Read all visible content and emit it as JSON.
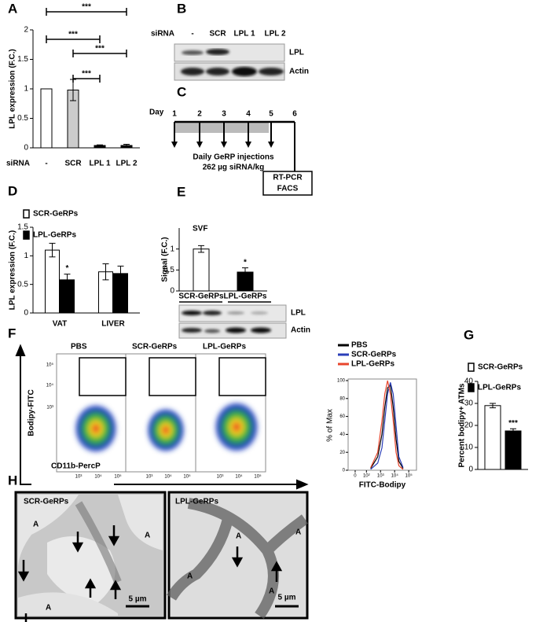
{
  "chart_data": [
    {
      "type": "bar",
      "panel": "A",
      "y_label": "LPL expression (F.C.)",
      "x_label": "siRNA",
      "categories": [
        "-",
        "SCR",
        "LPL 1",
        "LPL 2"
      ],
      "values": [
        1,
        0.98,
        0.04,
        0.04
      ],
      "errors": [
        0,
        0.18,
        0.01,
        0.02
      ],
      "colors": [
        "#ffffff",
        "#cccccc",
        "#000000",
        "#000000"
      ],
      "ylim": [
        0,
        2
      ],
      "yticks": [
        0,
        0.5,
        1,
        1.5,
        2
      ],
      "brackets": [
        {
          "text": "***",
          "between": [
            "-",
            "LPL 2"
          ]
        },
        {
          "text": "***",
          "between": [
            "-",
            "LPL 1"
          ]
        },
        {
          "text": "***",
          "between": [
            "SCR",
            "LPL 2"
          ]
        },
        {
          "text": "***",
          "between": [
            "SCR",
            "LPL 1"
          ]
        }
      ]
    },
    {
      "type": "bar",
      "panel": "D",
      "y_label": "LPL expression (F.C.)",
      "categories": [
        "VAT",
        "LIVER"
      ],
      "series": [
        {
          "name": "SCR-GeRPs",
          "color": "#ffffff",
          "values": [
            1.1,
            0.72
          ],
          "errors": [
            0.12,
            0.14
          ],
          "markers": [
            null,
            null
          ]
        },
        {
          "name": "LPL-GeRPs",
          "color": "#000000",
          "values": [
            0.58,
            0.69
          ],
          "errors": [
            0.1,
            0.13
          ],
          "markers": [
            "*",
            null
          ]
        }
      ],
      "ylim": [
        0,
        1.5
      ],
      "yticks": [
        0,
        0.5,
        1,
        1.5
      ]
    },
    {
      "type": "bar",
      "panel": "E",
      "title": "SVF",
      "y_label": "Signal (F.C.)",
      "categories": [
        "SCR-GeRPs",
        "LPL-GeRPs"
      ],
      "values": [
        1,
        0.45
      ],
      "errors": [
        0.08,
        0.1
      ],
      "markers": [
        null,
        "*"
      ],
      "colors": [
        "#ffffff",
        "#000000"
      ],
      "ylim": [
        0,
        1.5
      ],
      "yticks": [
        0,
        0.5,
        1
      ],
      "blot_bands": [
        "LPL",
        "Actin"
      ]
    },
    {
      "type": "bar",
      "panel": "G",
      "y_label": "Percent bodipy+ ATMs",
      "categories": [
        null
      ],
      "series": [
        {
          "name": "SCR-GeRPs",
          "color": "#ffffff",
          "values": [
            29
          ],
          "errors": [
            1
          ],
          "markers": [
            null
          ]
        },
        {
          "name": "LPL-GeRPs",
          "color": "#000000",
          "values": [
            17.5
          ],
          "errors": [
            1
          ],
          "markers": [
            "***"
          ]
        }
      ],
      "ylim": [
        0,
        40
      ],
      "yticks": [
        0,
        10,
        20,
        30,
        40
      ]
    },
    {
      "type": "line",
      "y_label": "% of Max",
      "x_label": "FITC-Bodipy",
      "x": [
        2.3,
        2.8,
        3.1,
        3.3,
        3.5,
        3.7,
        3.9,
        4.1,
        4.3,
        4.6
      ],
      "series": [
        {
          "name": "PBS",
          "color": "#000000",
          "values": [
            2,
            15,
            40,
            70,
            92,
            95,
            70,
            35,
            10,
            2
          ]
        },
        {
          "name": "SCR-GeRPs",
          "color": "#2b3fb8",
          "values": [
            1,
            8,
            25,
            55,
            85,
            98,
            85,
            50,
            15,
            3
          ]
        },
        {
          "name": "LPL-GeRPs",
          "color": "#e8452c",
          "values": [
            3,
            20,
            55,
            85,
            100,
            85,
            55,
            20,
            5,
            1
          ]
        }
      ],
      "xlim": [
        0.7,
        5.55
      ],
      "xticks": [
        {
          "value": 1.2,
          "label": "0"
        },
        {
          "value": 2,
          "label": "10²"
        },
        {
          "value": 3,
          "label": "10³"
        },
        {
          "value": 4,
          "label": "10⁴"
        },
        {
          "value": 5,
          "label": "10⁵"
        }
      ],
      "ylim": [
        0,
        100
      ],
      "yticks": [
        0,
        20,
        40,
        60,
        80,
        100
      ]
    }
  ],
  "blot_b": {
    "panel": "B",
    "row_label": "siRNA",
    "lanes": [
      "-",
      "SCR",
      "LPL 1",
      "LPL 2"
    ],
    "bands": [
      "LPL",
      "Actin"
    ]
  },
  "timeline_c": {
    "panel": "C",
    "day_label": "Day",
    "days": [
      "1",
      "2",
      "3",
      "4",
      "5",
      "6"
    ],
    "treatment": [
      "Daily GeRP injections",
      "262 µg siRNA/kg"
    ],
    "readout": [
      "RT-PCR",
      "FACS"
    ]
  },
  "flow_f": {
    "panel": "F",
    "samples": [
      "PBS",
      "SCR-GeRPs",
      "LPL-GeRPs"
    ],
    "y_label": "Bodipy-FITC",
    "x_label": "CD11b-PercP",
    "axis_ticks": [
      "10²",
      "10³",
      "10⁴",
      "10⁵"
    ]
  },
  "micrographs_h": {
    "panel": "H",
    "images": [
      {
        "title": "SCR-GeRPs",
        "region_labels": [
          "A",
          "A",
          "A"
        ],
        "scale_bar": "5 µm"
      },
      {
        "title": "LPL-GeRPs",
        "region_labels": [
          "A",
          "A",
          "A",
          "A"
        ],
        "scale_bar": "5 µm"
      }
    ]
  }
}
